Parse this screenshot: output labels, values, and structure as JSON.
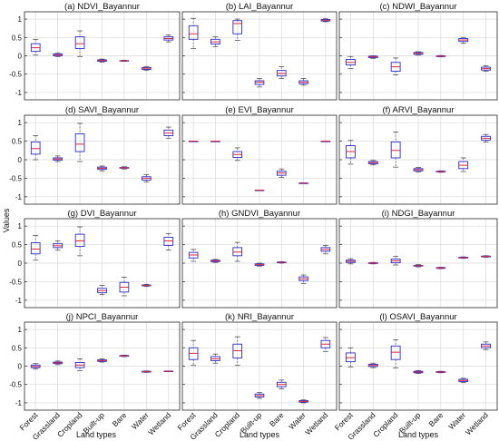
{
  "figure": {
    "ylabel": "Values",
    "xlabel": "Land types"
  },
  "colors": {
    "box": "#2b2bd1",
    "median": "#e0263a",
    "whisker": "#555555",
    "grid": "#d9d9d9"
  },
  "chart_data": {
    "type": "boxplot",
    "categories": [
      "Forest",
      "Grassland",
      "Cropland",
      "Built-up",
      "Bare",
      "Water",
      "Wetland"
    ],
    "yticks": [
      1,
      0.5,
      0,
      -0.5,
      -1
    ],
    "ylim": [
      -1.2,
      1.2
    ],
    "grid": true,
    "panels": [
      {
        "title": "(a) NDVI_Bayannur",
        "boxes": [
          {
            "lw": 0.02,
            "q1": 0.12,
            "med": 0.22,
            "q3": 0.33,
            "uw": 0.45
          },
          {
            "lw": -0.02,
            "q1": 0.0,
            "med": 0.02,
            "q3": 0.05,
            "uw": 0.07
          },
          {
            "lw": -0.02,
            "q1": 0.2,
            "med": 0.33,
            "q3": 0.52,
            "uw": 0.68
          },
          {
            "lw": -0.17,
            "q1": -0.15,
            "med": -0.13,
            "q3": -0.11,
            "uw": -0.09
          },
          {
            "lw": -0.15,
            "q1": -0.14,
            "med": -0.135,
            "q3": -0.13,
            "uw": -0.12
          },
          {
            "lw": -0.4,
            "q1": -0.37,
            "med": -0.34,
            "q3": -0.32,
            "uw": -0.3
          },
          {
            "lw": 0.38,
            "q1": 0.43,
            "med": 0.47,
            "q3": 0.52,
            "uw": 0.57
          }
        ]
      },
      {
        "title": "(b) LAI_Bayannur",
        "boxes": [
          {
            "lw": 0.2,
            "q1": 0.45,
            "med": 0.6,
            "q3": 0.82,
            "uw": 1.02
          },
          {
            "lw": 0.25,
            "q1": 0.32,
            "med": 0.38,
            "q3": 0.45,
            "uw": 0.52
          },
          {
            "lw": 0.42,
            "q1": 0.6,
            "med": 0.88,
            "q3": 0.96,
            "uw": 1.0
          },
          {
            "lw": -0.85,
            "q1": -0.78,
            "med": -0.72,
            "q3": -0.68,
            "uw": -0.62
          },
          {
            "lw": -0.62,
            "q1": -0.55,
            "med": -0.48,
            "q3": -0.4,
            "uw": -0.3
          },
          {
            "lw": -0.8,
            "q1": -0.76,
            "med": -0.72,
            "q3": -0.68,
            "uw": -0.62
          },
          {
            "lw": 0.93,
            "q1": 0.95,
            "med": 0.97,
            "q3": 0.99,
            "uw": 1.01
          }
        ]
      },
      {
        "title": "(c) NDWI_Bayannur",
        "boxes": [
          {
            "lw": -0.35,
            "q1": -0.25,
            "med": -0.18,
            "q3": -0.1,
            "uw": -0.02
          },
          {
            "lw": -0.07,
            "q1": -0.05,
            "med": -0.03,
            "q3": -0.01,
            "uw": 0.0
          },
          {
            "lw": -0.52,
            "q1": -0.42,
            "med": -0.3,
            "q3": -0.18,
            "uw": -0.06
          },
          {
            "lw": 0.02,
            "q1": 0.04,
            "med": 0.07,
            "q3": 0.09,
            "uw": 0.11
          },
          {
            "lw": -0.03,
            "q1": -0.02,
            "med": -0.01,
            "q3": 0.0,
            "uw": 0.01
          },
          {
            "lw": 0.34,
            "q1": 0.39,
            "med": 0.43,
            "q3": 0.47,
            "uw": 0.5
          },
          {
            "lw": -0.42,
            "q1": -0.39,
            "med": -0.35,
            "q3": -0.31,
            "uw": -0.27
          }
        ]
      },
      {
        "title": "(d) SAVI_Bayannur",
        "boxes": [
          {
            "lw": 0.0,
            "q1": 0.15,
            "med": 0.3,
            "q3": 0.48,
            "uw": 0.65
          },
          {
            "lw": -0.05,
            "q1": -0.01,
            "med": 0.02,
            "q3": 0.05,
            "uw": 0.1
          },
          {
            "lw": -0.05,
            "q1": 0.22,
            "med": 0.42,
            "q3": 0.7,
            "uw": 0.98
          },
          {
            "lw": -0.3,
            "q1": -0.26,
            "med": -0.23,
            "q3": -0.2,
            "uw": -0.17
          },
          {
            "lw": -0.25,
            "q1": -0.23,
            "med": -0.22,
            "q3": -0.21,
            "uw": -0.19
          },
          {
            "lw": -0.6,
            "q1": -0.55,
            "med": -0.5,
            "q3": -0.46,
            "uw": -0.4
          },
          {
            "lw": 0.58,
            "q1": 0.65,
            "med": 0.72,
            "q3": 0.8,
            "uw": 0.88
          }
        ]
      },
      {
        "title": "(e) EVI_Bayannur",
        "boxes": [
          {
            "lw": 0.5,
            "q1": 0.5,
            "med": 0.5,
            "q3": 0.5,
            "uw": 0.5
          },
          {
            "lw": 0.5,
            "q1": 0.5,
            "med": 0.5,
            "q3": 0.5,
            "uw": 0.5
          },
          {
            "lw": -0.02,
            "q1": 0.06,
            "med": 0.14,
            "q3": 0.22,
            "uw": 0.32
          },
          {
            "lw": -0.82,
            "q1": -0.82,
            "med": -0.82,
            "q3": -0.82,
            "uw": -0.82
          },
          {
            "lw": -0.48,
            "q1": -0.42,
            "med": -0.36,
            "q3": -0.31,
            "uw": -0.25
          },
          {
            "lw": -0.63,
            "q1": -0.63,
            "med": -0.63,
            "q3": -0.63,
            "uw": -0.63
          },
          {
            "lw": 0.5,
            "q1": 0.5,
            "med": 0.5,
            "q3": 0.5,
            "uw": 0.5
          }
        ]
      },
      {
        "title": "(f) ARVI_Bayannur",
        "boxes": [
          {
            "lw": -0.12,
            "q1": 0.05,
            "med": 0.22,
            "q3": 0.38,
            "uw": 0.52
          },
          {
            "lw": -0.14,
            "q1": -0.11,
            "med": -0.08,
            "q3": -0.05,
            "uw": -0.02
          },
          {
            "lw": -0.2,
            "q1": 0.05,
            "med": 0.25,
            "q3": 0.48,
            "uw": 0.75
          },
          {
            "lw": -0.33,
            "q1": -0.3,
            "med": -0.27,
            "q3": -0.24,
            "uw": -0.21
          },
          {
            "lw": -0.34,
            "q1": -0.33,
            "med": -0.32,
            "q3": -0.31,
            "uw": -0.3
          },
          {
            "lw": -0.32,
            "q1": -0.24,
            "med": -0.15,
            "q3": -0.05,
            "uw": 0.05
          },
          {
            "lw": 0.48,
            "q1": 0.53,
            "med": 0.58,
            "q3": 0.63,
            "uw": 0.68
          }
        ]
      },
      {
        "title": "(g) DVI_Bayannur",
        "boxes": [
          {
            "lw": 0.08,
            "q1": 0.25,
            "med": 0.38,
            "q3": 0.55,
            "uw": 0.75
          },
          {
            "lw": 0.35,
            "q1": 0.42,
            "med": 0.47,
            "q3": 0.53,
            "uw": 0.6
          },
          {
            "lw": 0.2,
            "q1": 0.45,
            "med": 0.6,
            "q3": 0.78,
            "uw": 0.98
          },
          {
            "lw": -0.85,
            "q1": -0.8,
            "med": -0.74,
            "q3": -0.68,
            "uw": -0.6
          },
          {
            "lw": -0.88,
            "q1": -0.78,
            "med": -0.65,
            "q3": -0.52,
            "uw": -0.38
          },
          {
            "lw": -0.63,
            "q1": -0.61,
            "med": -0.6,
            "q3": -0.59,
            "uw": -0.57
          },
          {
            "lw": 0.35,
            "q1": 0.48,
            "med": 0.6,
            "q3": 0.7,
            "uw": 0.8
          }
        ]
      },
      {
        "title": "(h) GNDVI_Bayannur",
        "boxes": [
          {
            "lw": 0.05,
            "q1": 0.14,
            "med": 0.22,
            "q3": 0.29,
            "uw": 0.37
          },
          {
            "lw": 0.02,
            "q1": 0.04,
            "med": 0.06,
            "q3": 0.08,
            "uw": 0.1
          },
          {
            "lw": 0.05,
            "q1": 0.2,
            "med": 0.3,
            "q3": 0.42,
            "uw": 0.56
          },
          {
            "lw": -0.08,
            "q1": -0.06,
            "med": -0.04,
            "q3": -0.02,
            "uw": 0.0
          },
          {
            "lw": 0.0,
            "q1": 0.01,
            "med": 0.02,
            "q3": 0.03,
            "uw": 0.04
          },
          {
            "lw": -0.55,
            "q1": -0.47,
            "med": -0.42,
            "q3": -0.37,
            "uw": -0.32
          },
          {
            "lw": 0.25,
            "q1": 0.32,
            "med": 0.37,
            "q3": 0.42,
            "uw": 0.48
          }
        ]
      },
      {
        "title": "(i) NDGI_Bayannur",
        "boxes": [
          {
            "lw": -0.02,
            "q1": 0.02,
            "med": 0.05,
            "q3": 0.08,
            "uw": 0.12
          },
          {
            "lw": -0.02,
            "q1": -0.01,
            "med": 0.0,
            "q3": 0.01,
            "uw": 0.02
          },
          {
            "lw": -0.05,
            "q1": 0.01,
            "med": 0.06,
            "q3": 0.11,
            "uw": 0.18
          },
          {
            "lw": -0.1,
            "q1": -0.08,
            "med": -0.07,
            "q3": -0.06,
            "uw": -0.04
          },
          {
            "lw": -0.15,
            "q1": -0.14,
            "med": -0.13,
            "q3": -0.12,
            "uw": -0.11
          },
          {
            "lw": 0.13,
            "q1": 0.14,
            "med": 0.15,
            "q3": 0.16,
            "uw": 0.17
          },
          {
            "lw": 0.16,
            "q1": 0.17,
            "med": 0.18,
            "q3": 0.19,
            "uw": 0.2
          }
        ]
      },
      {
        "title": "(j) NPCI_Bayannur",
        "boxes": [
          {
            "lw": -0.08,
            "q1": -0.04,
            "med": -0.01,
            "q3": 0.03,
            "uw": 0.07
          },
          {
            "lw": 0.04,
            "q1": 0.07,
            "med": 0.09,
            "q3": 0.11,
            "uw": 0.14
          },
          {
            "lw": -0.12,
            "q1": -0.04,
            "med": 0.03,
            "q3": 0.1,
            "uw": 0.2
          },
          {
            "lw": 0.11,
            "q1": 0.13,
            "med": 0.15,
            "q3": 0.17,
            "uw": 0.2
          },
          {
            "lw": 0.26,
            "q1": 0.27,
            "med": 0.28,
            "q3": 0.29,
            "uw": 0.3
          },
          {
            "lw": -0.17,
            "q1": -0.16,
            "med": -0.15,
            "q3": -0.14,
            "uw": -0.13
          },
          {
            "lw": -0.15,
            "q1": -0.145,
            "med": -0.14,
            "q3": -0.135,
            "uw": -0.13
          }
        ]
      },
      {
        "title": "(k) NRI_Bayannur",
        "boxes": [
          {
            "lw": 0.02,
            "q1": 0.18,
            "med": 0.35,
            "q3": 0.5,
            "uw": 0.7
          },
          {
            "lw": 0.08,
            "q1": 0.15,
            "med": 0.2,
            "q3": 0.26,
            "uw": 0.33
          },
          {
            "lw": 0.02,
            "q1": 0.22,
            "med": 0.42,
            "q3": 0.6,
            "uw": 0.8
          },
          {
            "lw": -0.88,
            "q1": -0.84,
            "med": -0.8,
            "q3": -0.76,
            "uw": -0.72
          },
          {
            "lw": -0.62,
            "q1": -0.56,
            "med": -0.5,
            "q3": -0.44,
            "uw": -0.38
          },
          {
            "lw": -1.0,
            "q1": -0.98,
            "med": -0.96,
            "q3": -0.94,
            "uw": -0.92
          },
          {
            "lw": 0.4,
            "q1": 0.5,
            "med": 0.6,
            "q3": 0.7,
            "uw": 0.78
          }
        ]
      },
      {
        "title": "(l) OSAVI_Bayannur",
        "boxes": [
          {
            "lw": -0.02,
            "q1": 0.12,
            "med": 0.23,
            "q3": 0.36,
            "uw": 0.5
          },
          {
            "lw": -0.04,
            "q1": -0.01,
            "med": 0.02,
            "q3": 0.05,
            "uw": 0.08
          },
          {
            "lw": -0.05,
            "q1": 0.18,
            "med": 0.38,
            "q3": 0.55,
            "uw": 0.72
          },
          {
            "lw": -0.2,
            "q1": -0.18,
            "med": -0.16,
            "q3": -0.14,
            "uw": -0.12
          },
          {
            "lw": -0.18,
            "q1": -0.17,
            "med": -0.16,
            "q3": -0.15,
            "uw": -0.14
          },
          {
            "lw": -0.45,
            "q1": -0.42,
            "med": -0.39,
            "q3": -0.36,
            "uw": -0.33
          },
          {
            "lw": 0.45,
            "q1": 0.5,
            "med": 0.55,
            "q3": 0.6,
            "uw": 0.66
          }
        ]
      }
    ]
  }
}
